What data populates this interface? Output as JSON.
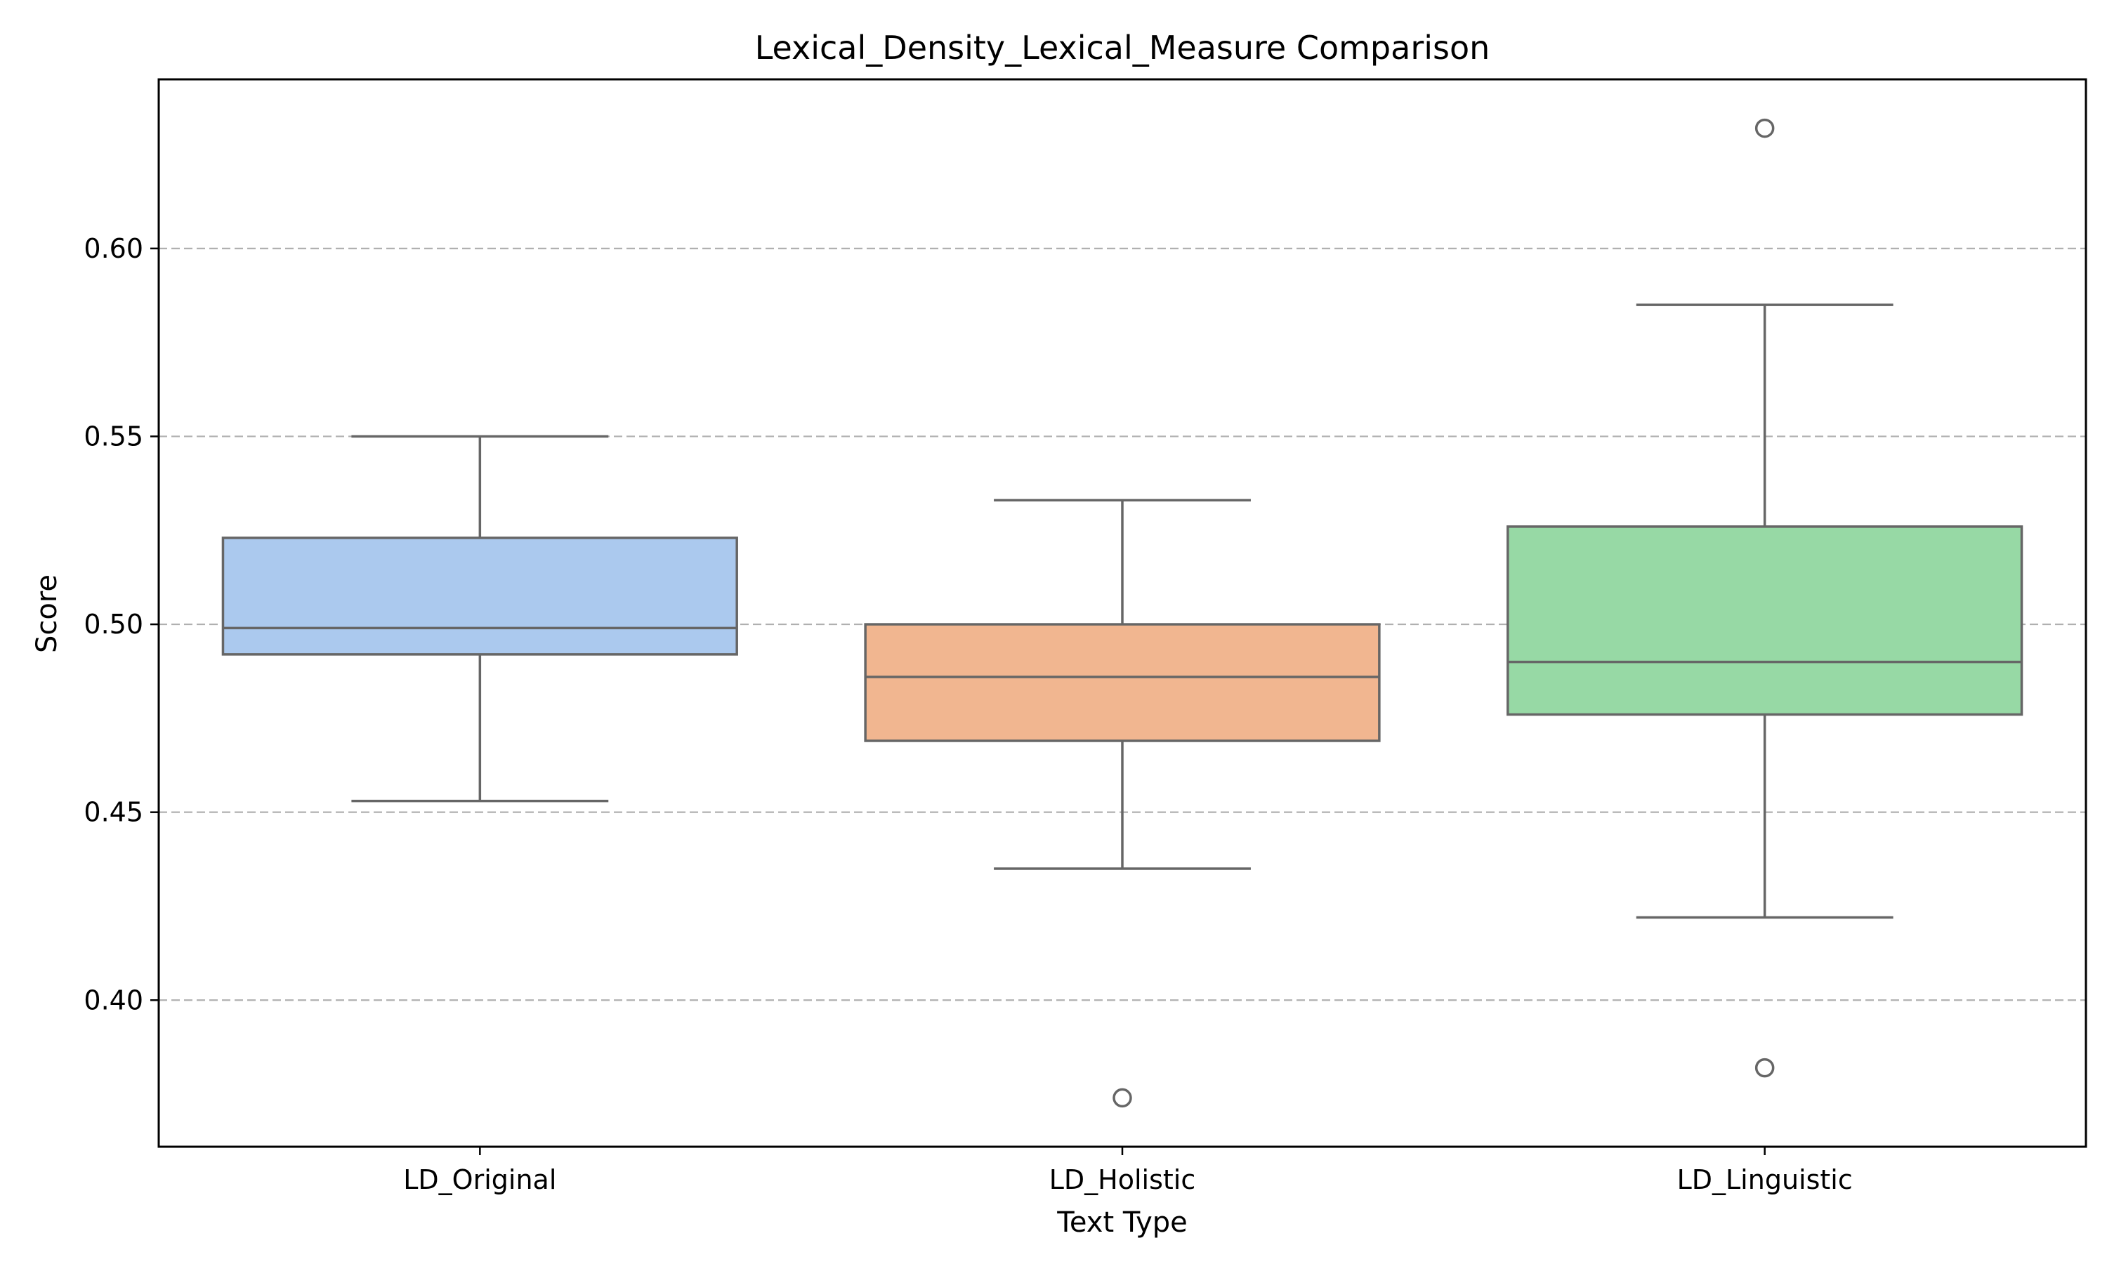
{
  "chart_data": {
    "type": "box",
    "title": "Lexical_Density_Lexical_Measure Comparison",
    "xlabel": "Text Type",
    "ylabel": "Score",
    "ylim": [
      0.361,
      0.645
    ],
    "yticks": [
      0.4,
      0.45,
      0.5,
      0.55,
      0.6
    ],
    "ytick_labels": [
      "0.40",
      "0.45",
      "0.50",
      "0.55",
      "0.60"
    ],
    "grid": "y-dashed",
    "categories": [
      "LD_Original",
      "LD_Holistic",
      "LD_Linguistic"
    ],
    "series": [
      {
        "category": "LD_Original",
        "color": "#abc9ee",
        "whisker_low": 0.453,
        "q1": 0.492,
        "median": 0.499,
        "q3": 0.523,
        "whisker_high": 0.55,
        "outliers": []
      },
      {
        "category": "LD_Holistic",
        "color": "#f1b690",
        "whisker_low": 0.435,
        "q1": 0.469,
        "median": 0.486,
        "q3": 0.5,
        "whisker_high": 0.533,
        "outliers": [
          0.374
        ]
      },
      {
        "category": "LD_Linguistic",
        "color": "#97d9a5",
        "whisker_low": 0.422,
        "q1": 0.476,
        "median": 0.49,
        "q3": 0.526,
        "whisker_high": 0.585,
        "outliers": [
          0.632,
          0.382
        ]
      }
    ]
  }
}
